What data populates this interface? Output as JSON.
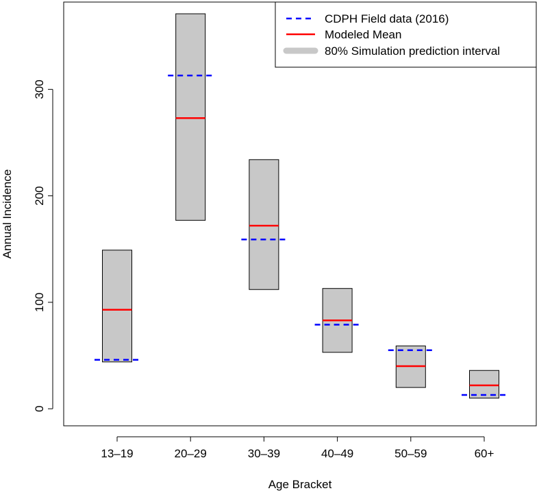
{
  "chart_data": {
    "type": "interval",
    "title": "",
    "xlabel": "Age Bracket",
    "ylabel": "Annual Incidence",
    "ylim": [
      -16,
      382
    ],
    "yticks": [
      0,
      100,
      200,
      300
    ],
    "categories": [
      "13–19",
      "20–29",
      "30–39",
      "40–49",
      "50–59",
      "60+"
    ],
    "series": [
      {
        "name": "80% Simulation prediction interval",
        "kind": "interval-box",
        "color": "#c8c8c8",
        "lower": [
          44,
          177,
          112,
          53,
          20,
          10
        ],
        "upper": [
          149,
          371,
          234,
          113,
          59,
          36
        ]
      },
      {
        "name": "Modeled Mean",
        "kind": "solid-line",
        "color": "#ff0000",
        "values": [
          93,
          273,
          172,
          83,
          40,
          22
        ]
      },
      {
        "name": "CDPH Field data (2016)",
        "kind": "dashed-line",
        "color": "#0000ff",
        "values": [
          46,
          313,
          159,
          79,
          55,
          13
        ]
      }
    ],
    "legend": {
      "position": "top-right",
      "entries": [
        {
          "label": "CDPH Field data (2016)",
          "style": "dashed",
          "color": "#0000ff"
        },
        {
          "label": "Modeled Mean",
          "style": "solid",
          "color": "#ff0000"
        },
        {
          "label": "80% Simulation prediction interval",
          "style": "thick",
          "color": "#c8c8c8"
        }
      ]
    }
  }
}
